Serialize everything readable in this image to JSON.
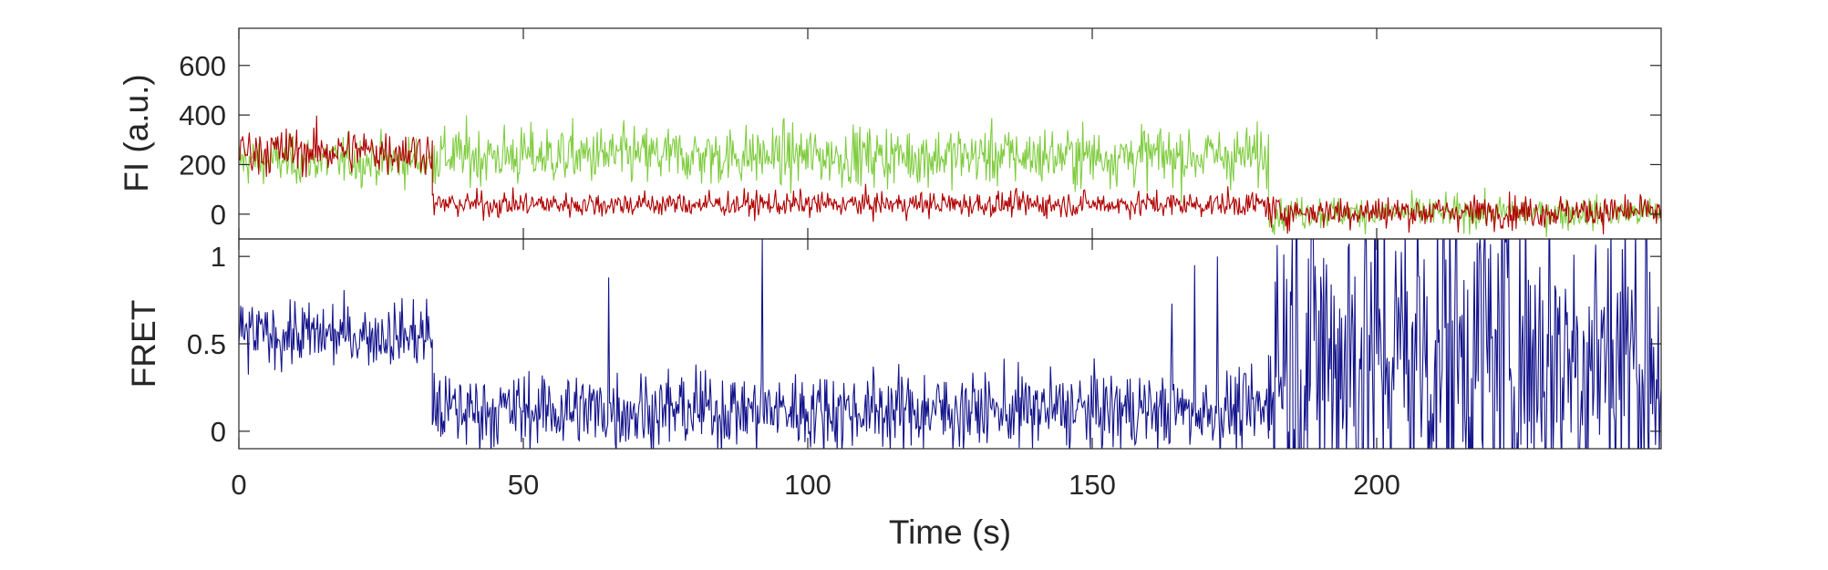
{
  "colors": {
    "donor": "#7fcc3f",
    "acceptor": "#b00000",
    "fret": "#14148c",
    "axis": "#262626"
  },
  "chart_data": [
    {
      "type": "line",
      "ylabel": "FI (a.u.)",
      "xlim": [
        0,
        250
      ],
      "ylim": [
        -100,
        750
      ],
      "yticks": [
        0,
        200,
        400,
        600
      ],
      "grid": false,
      "series": [
        {
          "color_key": "donor",
          "segments": [
            {
              "x": [
                0,
                34
              ],
              "mean": 215,
              "noise": 55
            },
            {
              "x": [
                34,
                181
              ],
              "mean": 235,
              "noise": 70
            },
            {
              "x": [
                181,
                250
              ],
              "mean": 5,
              "noise": 38
            }
          ]
        },
        {
          "color_key": "acceptor",
          "segments": [
            {
              "x": [
                0,
                34
              ],
              "mean": 255,
              "noise": 55
            },
            {
              "x": [
                34,
                181
              ],
              "mean": 40,
              "noise": 30
            },
            {
              "x": [
                181,
                250
              ],
              "mean": 10,
              "noise": 38
            }
          ]
        }
      ]
    },
    {
      "type": "line",
      "ylabel": "FRET",
      "xlabel": "Time (s)",
      "xlim": [
        0,
        250
      ],
      "ylim": [
        -0.1,
        1.1
      ],
      "xticks": [
        0,
        50,
        100,
        150,
        200
      ],
      "yticks": [
        0,
        0.5,
        1
      ],
      "ytick_labels": [
        "0",
        "0.5",
        "1"
      ],
      "grid": false,
      "series": [
        {
          "color_key": "fret",
          "segments": [
            {
              "x": [
                0,
                34
              ],
              "mean": 0.55,
              "noise": 0.11
            },
            {
              "x": [
                34,
                181
              ],
              "mean": 0.12,
              "noise": 0.13
            },
            {
              "x": [
                181,
                250
              ],
              "mean": 0.45,
              "noise": 0.6
            }
          ],
          "spikes": [
            {
              "x": 65,
              "y": 0.88
            },
            {
              "x": 92,
              "y": 1.1
            },
            {
              "x": 164,
              "y": 0.73
            },
            {
              "x": 168,
              "y": 0.95
            },
            {
              "x": 172,
              "y": 1.0
            }
          ]
        }
      ]
    }
  ]
}
